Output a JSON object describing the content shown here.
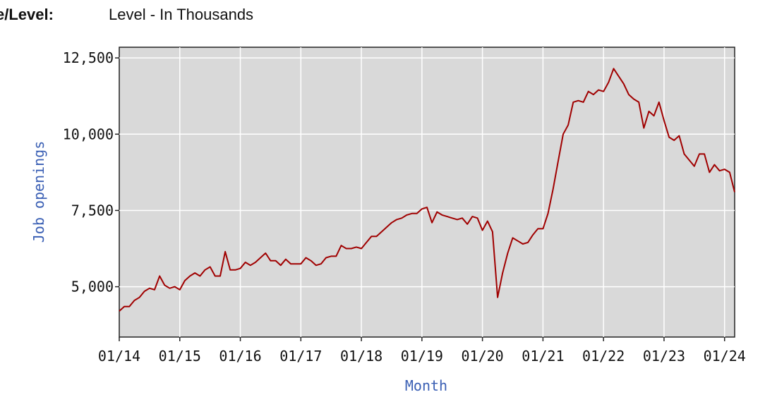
{
  "header": {
    "key_label": "e/Level:",
    "value": "Level - In Thousands"
  },
  "colors": {
    "line": "#a00000",
    "plot_bg": "#d9d9d9",
    "grid": "#ffffff",
    "axis_label": "#3a5fb4"
  },
  "chart_data": {
    "type": "line",
    "title": "",
    "xlabel": "Month",
    "ylabel": "Job openings",
    "x_ticks": [
      "01/14",
      "01/15",
      "01/16",
      "01/17",
      "01/18",
      "01/19",
      "01/20",
      "01/21",
      "01/22",
      "01/23",
      "01/24"
    ],
    "y_ticks": [
      "5,000",
      "7,500",
      "10,000",
      "12,500"
    ],
    "ylim": [
      3350,
      12850
    ],
    "xlim": [
      "2014-01",
      "2024-03"
    ],
    "grid": true,
    "series": [
      {
        "x": [
          "2014-01",
          "2014-02",
          "2014-03",
          "2014-04",
          "2014-05",
          "2014-06",
          "2014-07",
          "2014-08",
          "2014-09",
          "2014-10",
          "2014-11",
          "2014-12",
          "2015-01",
          "2015-02",
          "2015-03",
          "2015-04",
          "2015-05",
          "2015-06",
          "2015-07",
          "2015-08",
          "2015-09",
          "2015-10",
          "2015-11",
          "2015-12",
          "2016-01",
          "2016-02",
          "2016-03",
          "2016-04",
          "2016-05",
          "2016-06",
          "2016-07",
          "2016-08",
          "2016-09",
          "2016-10",
          "2016-11",
          "2016-12",
          "2017-01",
          "2017-02",
          "2017-03",
          "2017-04",
          "2017-05",
          "2017-06",
          "2017-07",
          "2017-08",
          "2017-09",
          "2017-10",
          "2017-11",
          "2017-12",
          "2018-01",
          "2018-02",
          "2018-03",
          "2018-04",
          "2018-05",
          "2018-06",
          "2018-07",
          "2018-08",
          "2018-09",
          "2018-10",
          "2018-11",
          "2018-12",
          "2019-01",
          "2019-02",
          "2019-03",
          "2019-04",
          "2019-05",
          "2019-06",
          "2019-07",
          "2019-08",
          "2019-09",
          "2019-10",
          "2019-11",
          "2019-12",
          "2020-01",
          "2020-02",
          "2020-03",
          "2020-04",
          "2020-05",
          "2020-06",
          "2020-07",
          "2020-08",
          "2020-09",
          "2020-10",
          "2020-11",
          "2020-12",
          "2021-01",
          "2021-02",
          "2021-03",
          "2021-04",
          "2021-05",
          "2021-06",
          "2021-07",
          "2021-08",
          "2021-09",
          "2021-10",
          "2021-11",
          "2021-12",
          "2022-01",
          "2022-02",
          "2022-03",
          "2022-04",
          "2022-05",
          "2022-06",
          "2022-07",
          "2022-08",
          "2022-09",
          "2022-10",
          "2022-11",
          "2022-12",
          "2023-01",
          "2023-02",
          "2023-03",
          "2023-04",
          "2023-05",
          "2023-06",
          "2023-07",
          "2023-08",
          "2023-09",
          "2023-10",
          "2023-11",
          "2023-12",
          "2024-01",
          "2024-02",
          "2024-03"
        ],
        "values": [
          4200,
          4350,
          4350,
          4550,
          4650,
          4850,
          4950,
          4900,
          5350,
          5050,
          4950,
          5000,
          4900,
          5200,
          5350,
          5450,
          5350,
          5550,
          5650,
          5350,
          5350,
          6150,
          5550,
          5550,
          5600,
          5800,
          5700,
          5800,
          5950,
          6100,
          5850,
          5850,
          5700,
          5900,
          5750,
          5750,
          5750,
          5950,
          5850,
          5700,
          5750,
          5950,
          6000,
          6000,
          6350,
          6250,
          6250,
          6300,
          6250,
          6450,
          6650,
          6650,
          6800,
          6950,
          7100,
          7200,
          7250,
          7350,
          7400,
          7400,
          7550,
          7600,
          7100,
          7450,
          7350,
          7300,
          7250,
          7200,
          7250,
          7050,
          7300,
          7250,
          6850,
          7150,
          6800,
          4650,
          5450,
          6100,
          6600,
          6500,
          6400,
          6450,
          6700,
          6900,
          6900,
          7400,
          8200,
          9100,
          10000,
          10300,
          11050,
          11100,
          11050,
          11400,
          11300,
          11450,
          11400,
          11700,
          12150,
          11900,
          11650,
          11300,
          11150,
          11050,
          10200,
          10750,
          10600,
          11050,
          10450,
          9900,
          9800,
          9950,
          9350,
          9150,
          8950,
          9350,
          9350,
          8750,
          9000,
          8800,
          8850,
          8750,
          8100
        ]
      }
    ]
  }
}
